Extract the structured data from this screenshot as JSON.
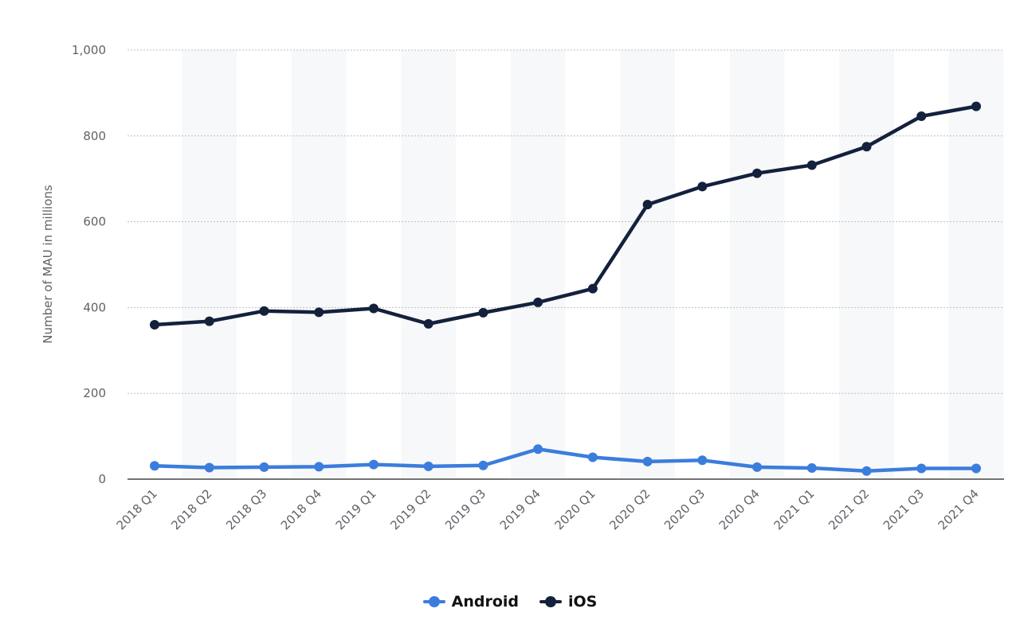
{
  "chart_data": {
    "type": "line",
    "categories": [
      "2018 Q1",
      "2018 Q2",
      "2018 Q3",
      "2018 Q4",
      "2019 Q1",
      "2019 Q2",
      "2019 Q3",
      "2019 Q4",
      "2020 Q1",
      "2020 Q2",
      "2020 Q3",
      "2020 Q4",
      "2021 Q1",
      "2021 Q2",
      "2021 Q3",
      "2021 Q4"
    ],
    "series": [
      {
        "name": "Android",
        "color": "#3b7ddd",
        "values": [
          31,
          27,
          28,
          29,
          34,
          30,
          32,
          70,
          51,
          41,
          44,
          28,
          26,
          19,
          25,
          25
        ]
      },
      {
        "name": "iOS",
        "color": "#14213d",
        "values": [
          360,
          368,
          392,
          389,
          398,
          362,
          388,
          412,
          444,
          640,
          682,
          713,
          732,
          775,
          846,
          869
        ]
      }
    ],
    "ylabel": "Number of MAU in millions",
    "xlabel": "",
    "ylim": [
      0,
      1000
    ],
    "yticks": [
      "0",
      "200",
      "400",
      "600",
      "800",
      "1,000"
    ],
    "ytick_values": [
      0,
      200,
      400,
      600,
      800,
      1000
    ],
    "grid": true,
    "legend": "bottom-center"
  }
}
